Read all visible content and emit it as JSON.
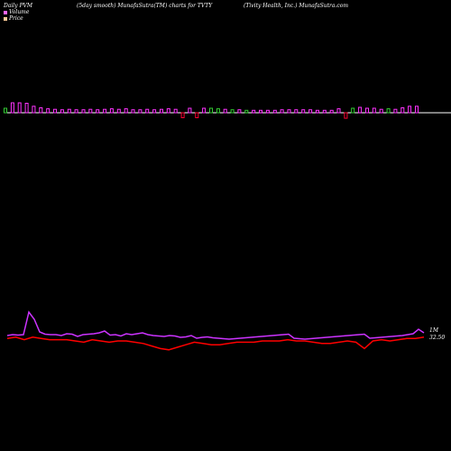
{
  "header": {
    "left": "Daily PVM",
    "middle": "(5day smooth) MunafaSutra(TM) charts for TVTY",
    "right": "(Tivity Health, Inc.) MunafaSutra.com"
  },
  "legend": {
    "items": [
      {
        "label": "Volume",
        "color": "#ff66ff"
      },
      {
        "label": "Price",
        "color": "#ffcc99"
      }
    ]
  },
  "labels": {
    "volume_unit": "1M",
    "last_price": "32.50"
  },
  "colors": {
    "background": "#000000",
    "baseline": "#ffffff",
    "bar_up": "#ff33ff",
    "bar_down": "#ff0033",
    "bar_flat": "#33cc33",
    "volume_line": "#cc33ff",
    "price_line": "#ff0000"
  },
  "chart_data": {
    "type": "bar",
    "bars": [
      {
        "v": 0.45,
        "c": "flat"
      },
      {
        "v": 1.0,
        "c": "up"
      },
      {
        "v": 1.0,
        "c": "up"
      },
      {
        "v": 0.95,
        "c": "up"
      },
      {
        "v": 0.65,
        "c": "up"
      },
      {
        "v": 0.5,
        "c": "up"
      },
      {
        "v": 0.4,
        "c": "up"
      },
      {
        "v": 0.35,
        "c": "up"
      },
      {
        "v": 0.3,
        "c": "up"
      },
      {
        "v": 0.35,
        "c": "up"
      },
      {
        "v": 0.3,
        "c": "up"
      },
      {
        "v": 0.3,
        "c": "up"
      },
      {
        "v": 0.35,
        "c": "up"
      },
      {
        "v": 0.3,
        "c": "up"
      },
      {
        "v": 0.35,
        "c": "up"
      },
      {
        "v": 0.4,
        "c": "up"
      },
      {
        "v": 0.35,
        "c": "up"
      },
      {
        "v": 0.4,
        "c": "up"
      },
      {
        "v": 0.3,
        "c": "up"
      },
      {
        "v": 0.3,
        "c": "up"
      },
      {
        "v": 0.35,
        "c": "up"
      },
      {
        "v": 0.3,
        "c": "up"
      },
      {
        "v": 0.35,
        "c": "up"
      },
      {
        "v": 0.4,
        "c": "up"
      },
      {
        "v": 0.35,
        "c": "up"
      },
      {
        "v": 0.5,
        "c": "down"
      },
      {
        "v": 0.45,
        "c": "up"
      },
      {
        "v": 0.5,
        "c": "down"
      },
      {
        "v": 0.45,
        "c": "up"
      },
      {
        "v": 0.45,
        "c": "flat"
      },
      {
        "v": 0.4,
        "c": "flat"
      },
      {
        "v": 0.35,
        "c": "up"
      },
      {
        "v": 0.3,
        "c": "flat"
      },
      {
        "v": 0.3,
        "c": "up"
      },
      {
        "v": 0.25,
        "c": "flat"
      },
      {
        "v": 0.25,
        "c": "up"
      },
      {
        "v": 0.25,
        "c": "up"
      },
      {
        "v": 0.25,
        "c": "up"
      },
      {
        "v": 0.25,
        "c": "up"
      },
      {
        "v": 0.3,
        "c": "up"
      },
      {
        "v": 0.3,
        "c": "up"
      },
      {
        "v": 0.3,
        "c": "up"
      },
      {
        "v": 0.3,
        "c": "up"
      },
      {
        "v": 0.3,
        "c": "up"
      },
      {
        "v": 0.25,
        "c": "up"
      },
      {
        "v": 0.25,
        "c": "up"
      },
      {
        "v": 0.25,
        "c": "up"
      },
      {
        "v": 0.4,
        "c": "up"
      },
      {
        "v": 0.55,
        "c": "down"
      },
      {
        "v": 0.45,
        "c": "flat"
      },
      {
        "v": 0.55,
        "c": "up"
      },
      {
        "v": 0.45,
        "c": "up"
      },
      {
        "v": 0.45,
        "c": "up"
      },
      {
        "v": 0.35,
        "c": "up"
      },
      {
        "v": 0.4,
        "c": "flat"
      },
      {
        "v": 0.35,
        "c": "up"
      },
      {
        "v": 0.5,
        "c": "up"
      },
      {
        "v": 0.65,
        "c": "up"
      },
      {
        "v": 0.65,
        "c": "up"
      }
    ],
    "volume_line": [
      0.6,
      0.7,
      0.65,
      0.7,
      3.2,
      2.4,
      1.0,
      0.75,
      0.7,
      0.7,
      0.6,
      0.8,
      0.75,
      0.5,
      0.7,
      0.75,
      0.8,
      0.9,
      1.1,
      0.65,
      0.7,
      0.55,
      0.8,
      0.7,
      0.8,
      0.9,
      0.7,
      0.6,
      0.55,
      0.5,
      0.6,
      0.55,
      0.4,
      0.45,
      0.6,
      0.3,
      0.4,
      0.45,
      0.35,
      0.3,
      0.25,
      0.2,
      0.25,
      0.3,
      0.35,
      0.4,
      0.45,
      0.5,
      0.55,
      0.6,
      0.65,
      0.7,
      0.75,
      0.3,
      0.25,
      0.2,
      0.25,
      0.3,
      0.35,
      0.4,
      0.45,
      0.5,
      0.55,
      0.6,
      0.65,
      0.7,
      0.75,
      0.3,
      0.35,
      0.4,
      0.45,
      0.5,
      0.55,
      0.6,
      0.7,
      0.8,
      1.3,
      0.9
    ],
    "price_line": [
      33.5,
      33.6,
      33.4,
      33.6,
      33.5,
      33.4,
      33.4,
      33.4,
      33.3,
      33.2,
      33.4,
      33.3,
      33.2,
      33.3,
      33.3,
      33.2,
      33.1,
      32.9,
      32.7,
      32.6,
      32.8,
      33.0,
      33.2,
      33.1,
      33.0,
      33.0,
      33.1,
      33.2,
      33.2,
      33.2,
      33.3,
      33.3,
      33.3,
      33.4,
      33.3,
      33.3,
      33.2,
      33.1,
      33.1,
      33.2,
      33.3,
      33.2,
      32.7,
      33.3,
      33.4,
      33.3,
      33.4,
      33.5,
      33.5,
      33.6
    ]
  }
}
